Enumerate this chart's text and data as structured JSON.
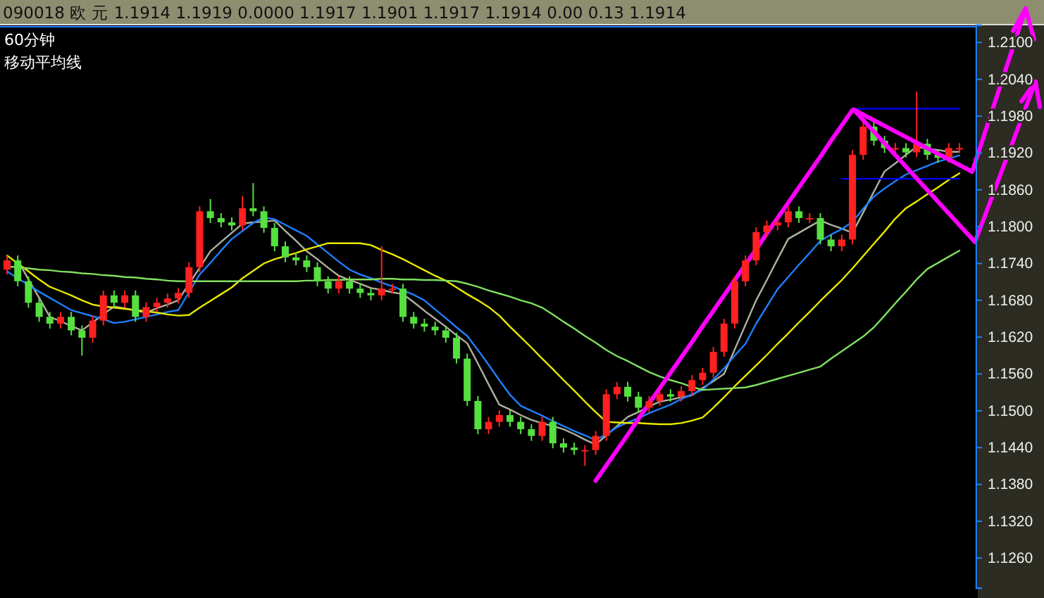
{
  "chart_data": {
    "type": "candlestick",
    "title": "090018 欧 元 1.1914 1.1919 0.0000 1.1917 1.1901 1.1917 1.1914 0.00 0.13 1.1914",
    "subtitle": "60分钟",
    "annotations": [
      "移动平均线"
    ],
    "categories": [
      null,
      null,
      null,
      null,
      null,
      null,
      null,
      null,
      null,
      null,
      null,
      null,
      null,
      null,
      null,
      null,
      null,
      null,
      null,
      null,
      null,
      null,
      null,
      null,
      null,
      null,
      null,
      null,
      null,
      null,
      null,
      null,
      null,
      null,
      null,
      null,
      null,
      null,
      null,
      null,
      null,
      null,
      null,
      null,
      null,
      null,
      null,
      null,
      null,
      null,
      null,
      null,
      null,
      null,
      null,
      null,
      null,
      null,
      null,
      null,
      null,
      null,
      null,
      null,
      null,
      null,
      null,
      null,
      null,
      null,
      null,
      null,
      null,
      null,
      null,
      null,
      null,
      null,
      null,
      null,
      null,
      null,
      null,
      null,
      null,
      null,
      null,
      null,
      null,
      null
    ],
    "ohlc": [
      [
        1.173,
        1.1753,
        1.1722,
        1.1745
      ],
      [
        1.1745,
        1.1753,
        1.1703,
        1.1711
      ],
      [
        1.1711,
        1.1719,
        1.1668,
        1.1676
      ],
      [
        1.1676,
        1.1684,
        1.1645,
        1.1653
      ],
      [
        1.1653,
        1.1661,
        1.1634,
        1.1642
      ],
      [
        1.1642,
        1.1661,
        1.1634,
        1.1653
      ],
      [
        1.1653,
        1.1661,
        1.1623,
        1.1631
      ],
      [
        1.1631,
        1.1639,
        1.159,
        1.1619
      ],
      [
        1.1619,
        1.1655,
        1.1611,
        1.1647
      ],
      [
        1.1647,
        1.1696,
        1.1639,
        1.1688
      ],
      [
        1.1688,
        1.1696,
        1.1668,
        1.1676
      ],
      [
        1.1676,
        1.1696,
        1.1668,
        1.1688
      ],
      [
        1.1688,
        1.1696,
        1.1645,
        1.1653
      ],
      [
        1.1653,
        1.1677,
        1.1645,
        1.1669
      ],
      [
        1.1669,
        1.1684,
        1.1661,
        1.1676
      ],
      [
        1.1676,
        1.1691,
        1.1668,
        1.1683
      ],
      [
        1.1683,
        1.17,
        1.1675,
        1.1692
      ],
      [
        1.1692,
        1.1742,
        1.1684,
        1.1734
      ],
      [
        1.1734,
        1.1833,
        1.1726,
        1.1825
      ],
      [
        1.1825,
        1.1845,
        1.1806,
        1.1814
      ],
      [
        1.1814,
        1.1822,
        1.1799,
        1.1807
      ],
      [
        1.1807,
        1.1815,
        1.1794,
        1.1802
      ],
      [
        1.1802,
        1.185,
        1.1794,
        1.183
      ],
      [
        1.183,
        1.1871,
        1.1817,
        1.1825
      ],
      [
        1.1825,
        1.1833,
        1.179,
        1.1798
      ],
      [
        1.1798,
        1.1806,
        1.176,
        1.1768
      ],
      [
        1.1768,
        1.1776,
        1.1742,
        1.175
      ],
      [
        1.175,
        1.1758,
        1.1737,
        1.1745
      ],
      [
        1.1745,
        1.1753,
        1.1726,
        1.1734
      ],
      [
        1.1734,
        1.1742,
        1.1703,
        1.1711
      ],
      [
        1.1711,
        1.1719,
        1.1691,
        1.1699
      ],
      [
        1.1699,
        1.1719,
        1.1691,
        1.1711
      ],
      [
        1.1711,
        1.1719,
        1.1691,
        1.1699
      ],
      [
        1.1699,
        1.1707,
        1.1684,
        1.1692
      ],
      [
        1.1692,
        1.17,
        1.168,
        1.1688
      ],
      [
        1.1688,
        1.1768,
        1.168,
        1.1699
      ],
      [
        1.1699,
        1.1707,
        1.1691,
        1.1699
      ],
      [
        1.1699,
        1.1707,
        1.1645,
        1.1653
      ],
      [
        1.1653,
        1.1661,
        1.1634,
        1.1642
      ],
      [
        1.1642,
        1.165,
        1.1629,
        1.1637
      ],
      [
        1.1637,
        1.1645,
        1.1623,
        1.1631
      ],
      [
        1.1631,
        1.1639,
        1.1611,
        1.1619
      ],
      [
        1.1619,
        1.1627,
        1.1577,
        1.1585
      ],
      [
        1.1585,
        1.1593,
        1.1508,
        1.1516
      ],
      [
        1.1516,
        1.1524,
        1.1462,
        1.147
      ],
      [
        1.147,
        1.149,
        1.1462,
        1.1482
      ],
      [
        1.1482,
        1.1501,
        1.1474,
        1.1493
      ],
      [
        1.1493,
        1.1501,
        1.1474,
        1.1482
      ],
      [
        1.1482,
        1.149,
        1.1462,
        1.147
      ],
      [
        1.147,
        1.1478,
        1.1451,
        1.1459
      ],
      [
        1.1459,
        1.149,
        1.1451,
        1.1482
      ],
      [
        1.1482,
        1.149,
        1.1439,
        1.1447
      ],
      [
        1.1447,
        1.1455,
        1.1432,
        1.144
      ],
      [
        1.144,
        1.1448,
        1.1428,
        1.1436
      ],
      [
        1.1436,
        1.1444,
        1.141,
        1.1436
      ],
      [
        1.1436,
        1.1467,
        1.1428,
        1.1459
      ],
      [
        1.1459,
        1.1535,
        1.1451,
        1.1527
      ],
      [
        1.1527,
        1.1547,
        1.1519,
        1.1539
      ],
      [
        1.1539,
        1.1547,
        1.1515,
        1.1523
      ],
      [
        1.1523,
        1.1531,
        1.1497,
        1.1505
      ],
      [
        1.1505,
        1.1524,
        1.1497,
        1.1516
      ],
      [
        1.1516,
        1.1535,
        1.1508,
        1.1527
      ],
      [
        1.1527,
        1.1535,
        1.1515,
        1.1523
      ],
      [
        1.1523,
        1.154,
        1.1515,
        1.1532
      ],
      [
        1.1532,
        1.1558,
        1.1524,
        1.155
      ],
      [
        1.155,
        1.157,
        1.1542,
        1.1562
      ],
      [
        1.1562,
        1.1604,
        1.1554,
        1.1596
      ],
      [
        1.1596,
        1.165,
        1.1588,
        1.1642
      ],
      [
        1.1642,
        1.1719,
        1.1634,
        1.1711
      ],
      [
        1.1711,
        1.1753,
        1.1703,
        1.1745
      ],
      [
        1.1745,
        1.1799,
        1.1737,
        1.1791
      ],
      [
        1.1791,
        1.181,
        1.1783,
        1.1802
      ],
      [
        1.1802,
        1.1815,
        1.1794,
        1.1807
      ],
      [
        1.1807,
        1.1833,
        1.1799,
        1.1825
      ],
      [
        1.1825,
        1.1833,
        1.1806,
        1.1814
      ],
      [
        1.1814,
        1.1822,
        1.1806,
        1.1814
      ],
      [
        1.1814,
        1.1822,
        1.1771,
        1.1779
      ],
      [
        1.1779,
        1.1787,
        1.176,
        1.1768
      ],
      [
        1.1768,
        1.1787,
        1.176,
        1.1779
      ],
      [
        1.1779,
        1.1925,
        1.1771,
        1.1917
      ],
      [
        1.1917,
        1.1975,
        1.1909,
        1.1963
      ],
      [
        1.1963,
        1.1971,
        1.1932,
        1.194
      ],
      [
        1.194,
        1.1948,
        1.192,
        1.1928
      ],
      [
        1.1928,
        1.1936,
        1.192,
        1.1928
      ],
      [
        1.1928,
        1.1936,
        1.1913,
        1.1921
      ],
      [
        1.1921,
        1.202,
        1.1913,
        1.1935
      ],
      [
        1.1935,
        1.1943,
        1.1909,
        1.1917
      ],
      [
        1.1917,
        1.1925,
        1.1904,
        1.1912
      ],
      [
        1.1912,
        1.1936,
        1.1904,
        1.1928
      ],
      [
        1.1928,
        1.1936,
        1.192,
        1.1928
      ]
    ],
    "colors": [
      "#ff2020",
      "#55e040",
      "#55e040",
      "#55e040",
      "#55e040",
      "#ff2020",
      "#55e040",
      "#55e040",
      "#ff2020",
      "#ff2020",
      "#55e040",
      "#ff2020",
      "#55e040",
      "#ff2020",
      "#ff2020",
      "#ff2020",
      "#ff2020",
      "#ff2020",
      "#ff2020",
      "#55e040",
      "#55e040",
      "#55e040",
      "#ff2020",
      "#55e040",
      "#55e040",
      "#55e040",
      "#55e040",
      "#55e040",
      "#55e040",
      "#55e040",
      "#55e040",
      "#ff2020",
      "#55e040",
      "#55e040",
      "#55e040",
      "#ff2020",
      "#ff2020",
      "#55e040",
      "#55e040",
      "#55e040",
      "#55e040",
      "#55e040",
      "#55e040",
      "#55e040",
      "#55e040",
      "#ff2020",
      "#ff2020",
      "#55e040",
      "#55e040",
      "#55e040",
      "#ff2020",
      "#55e040",
      "#55e040",
      "#55e040",
      "#ff2020",
      "#ff2020",
      "#ff2020",
      "#ff2020",
      "#55e040",
      "#55e040",
      "#ff2020",
      "#ff2020",
      "#55e040",
      "#ff2020",
      "#ff2020",
      "#ff2020",
      "#ff2020",
      "#ff2020",
      "#ff2020",
      "#ff2020",
      "#ff2020",
      "#ff2020",
      "#ff2020",
      "#ff2020",
      "#55e040",
      "#ff2020",
      "#55e040",
      "#55e040",
      "#ff2020",
      "#ff2020",
      "#ff2020",
      "#55e040",
      "#55e040",
      "#ff2020",
      "#55e040",
      "#ff2020",
      "#55e040",
      "#55e040",
      "#ff2020",
      "#ff2020"
    ],
    "series": [
      {
        "type": "line",
        "color": "#b0b0a0",
        "values": [
          null,
          1.1745,
          1.1714,
          1.1684,
          1.1653,
          1.1646,
          1.1638,
          1.1631,
          1.1644,
          1.1657,
          1.167,
          1.1667,
          1.1663,
          1.166,
          1.1667,
          1.1673,
          1.168,
          1.1707,
          1.1733,
          1.176,
          1.1775,
          1.179,
          1.1805,
          1.1807,
          1.1808,
          1.181,
          1.1793,
          1.1777,
          1.176,
          1.1747,
          1.1733,
          1.172,
          1.1713,
          1.1707,
          1.17,
          1.1697,
          1.1693,
          1.169,
          1.1677,
          1.1663,
          1.165,
          1.1637,
          1.1623,
          1.161,
          1.1577,
          1.1543,
          1.151,
          1.1502,
          1.1493,
          1.1485,
          1.148,
          1.1475,
          1.147,
          1.1462,
          1.1453,
          1.1445,
          1.146,
          1.1475,
          1.149,
          1.1498,
          1.1507,
          1.1515,
          1.1518,
          1.1522,
          1.1525,
          1.1537,
          1.1548,
          1.156,
          1.16,
          1.164,
          1.168,
          1.1713,
          1.1747,
          1.178,
          1.179,
          1.18,
          1.181,
          1.1803,
          1.1797,
          1.179,
          1.1823,
          1.1857,
          1.189,
          1.1903,
          1.1917,
          1.193,
          1.1927,
          1.1925,
          1.1922,
          1.1922
        ]
      },
      {
        "type": "line",
        "color": "#1e7fff",
        "values": [
          1.1727,
          1.1716,
          1.1705,
          1.1694,
          1.1684,
          1.1674,
          1.1664,
          1.1659,
          1.1654,
          1.1649,
          1.1643,
          1.1645,
          1.1649,
          1.1653,
          1.1657,
          1.1661,
          1.1664,
          1.1693,
          1.1722,
          1.1741,
          1.1761,
          1.178,
          1.1793,
          1.1806,
          1.1815,
          1.1812,
          1.1803,
          1.1794,
          1.1785,
          1.1771,
          1.1757,
          1.1743,
          1.173,
          1.1722,
          1.1716,
          1.1709,
          1.1703,
          1.1696,
          1.1689,
          1.168,
          1.1665,
          1.1651,
          1.1636,
          1.1622,
          1.1599,
          1.1575,
          1.155,
          1.1526,
          1.1508,
          1.15,
          1.1492,
          1.1483,
          1.1475,
          1.1467,
          1.146,
          1.1452,
          1.1462,
          1.1473,
          1.1481,
          1.1488,
          1.1496,
          1.1503,
          1.151,
          1.1519,
          1.1527,
          1.1534,
          1.1551,
          1.1569,
          1.159,
          1.1609,
          1.1642,
          1.167,
          1.1698,
          1.1718,
          1.1738,
          1.1757,
          1.1777,
          1.1787,
          1.1796,
          1.1808,
          1.1829,
          1.1849,
          1.1862,
          1.1874,
          1.1885,
          1.1892,
          1.1899,
          1.1906,
          1.1911,
          1.1916
        ]
      },
      {
        "type": "line",
        "color": "#e8e800",
        "values": [
          1.1753,
          1.174,
          1.1727,
          1.1714,
          1.1702,
          1.1695,
          1.1688,
          1.168,
          1.1673,
          1.167,
          1.1668,
          1.1666,
          1.1664,
          1.1662,
          1.166,
          1.1657,
          1.1655,
          1.1656,
          1.1668,
          1.1679,
          1.169,
          1.1701,
          1.1716,
          1.1728,
          1.174,
          1.1747,
          1.1752,
          1.1757,
          1.1763,
          1.1768,
          1.1773,
          1.1773,
          1.1773,
          1.1773,
          1.177,
          1.1762,
          1.1755,
          1.1747,
          1.1738,
          1.1729,
          1.172,
          1.1712,
          1.1701,
          1.169,
          1.168,
          1.1669,
          1.1655,
          1.1637,
          1.162,
          1.1603,
          1.1585,
          1.1568,
          1.155,
          1.1533,
          1.1515,
          1.1498,
          1.1482,
          1.1481,
          1.148,
          1.148,
          1.1479,
          1.1478,
          1.1478,
          1.148,
          1.1484,
          1.1489,
          1.1505,
          1.1522,
          1.154,
          1.1557,
          1.1574,
          1.1591,
          1.1609,
          1.1626,
          1.1644,
          1.1661,
          1.1679,
          1.1696,
          1.1713,
          1.1732,
          1.1752,
          1.1772,
          1.1792,
          1.1813,
          1.183,
          1.1841,
          1.1853,
          1.1864,
          1.1876,
          1.1887
        ]
      },
      {
        "type": "line",
        "color": "#80e060",
        "values": [
          1.1735,
          1.1734,
          1.1732,
          1.173,
          1.1729,
          1.1727,
          1.1726,
          1.1724,
          1.1723,
          1.1721,
          1.172,
          1.1718,
          1.1717,
          1.1715,
          1.1714,
          1.1712,
          1.1711,
          1.1711,
          1.1711,
          1.1711,
          1.1711,
          1.1711,
          1.1711,
          1.1711,
          1.1711,
          1.1711,
          1.1711,
          1.1711,
          1.1712,
          1.1712,
          1.1713,
          1.1713,
          1.1714,
          1.1714,
          1.1714,
          1.1715,
          1.1715,
          1.1714,
          1.1714,
          1.1713,
          1.1713,
          1.1712,
          1.1711,
          1.1707,
          1.1702,
          1.1696,
          1.1691,
          1.1686,
          1.168,
          1.1675,
          1.1668,
          1.1657,
          1.1645,
          1.1634,
          1.1622,
          1.1611,
          1.1599,
          1.1589,
          1.1581,
          1.1572,
          1.1563,
          1.1556,
          1.155,
          1.1545,
          1.1539,
          1.1534,
          1.1535,
          1.1536,
          1.1537,
          1.1538,
          1.1542,
          1.1547,
          1.1552,
          1.1557,
          1.1562,
          1.1567,
          1.1572,
          1.1585,
          1.1597,
          1.1609,
          1.1621,
          1.1636,
          1.1655,
          1.1675,
          1.1694,
          1.1714,
          1.1731,
          1.1741,
          1.1751,
          1.1761
        ]
      },
      {
        "type": "line",
        "color": "#ff00ff",
        "values": [
          null,
          null,
          null,
          null,
          null,
          null,
          null,
          null,
          null,
          null,
          null,
          null,
          null,
          null,
          null,
          null,
          null,
          null,
          null,
          null,
          null,
          null,
          null,
          null,
          null,
          null,
          null,
          null,
          null,
          null,
          null,
          null,
          null,
          null,
          null,
          null,
          null,
          null,
          null,
          null,
          null,
          null,
          null,
          null,
          null,
          null,
          null,
          null,
          null,
          null,
          null,
          null,
          null,
          null,
          null,
          1.1386,
          1.1411,
          1.1436,
          1.1461,
          1.1487,
          1.1512,
          1.1537,
          1.1562,
          1.1587,
          1.1612,
          1.1638,
          1.1663,
          1.1688,
          1.1713,
          1.1738,
          1.1763,
          1.1789,
          1.1814,
          1.1839,
          1.1864,
          1.1889,
          1.1914,
          1.194,
          1.1965,
          1.199,
          null,
          null,
          null,
          null,
          null,
          null,
          null,
          null,
          null,
          null
        ]
      },
      {
        "type": "line",
        "color": "#0000ff",
        "values": [
          null,
          null,
          null,
          null,
          null,
          null,
          null,
          null,
          null,
          null,
          null,
          null,
          null,
          null,
          null,
          null,
          null,
          null,
          null,
          null,
          null,
          null,
          null,
          null,
          null,
          null,
          null,
          null,
          null,
          null,
          null,
          null,
          null,
          null,
          null,
          null,
          null,
          null,
          null,
          null,
          null,
          null,
          null,
          null,
          null,
          null,
          null,
          null,
          null,
          null,
          null,
          null,
          null,
          null,
          null,
          null,
          null,
          null,
          null,
          null,
          null,
          null,
          null,
          null,
          null,
          null,
          null,
          null,
          null,
          null,
          null,
          null,
          null,
          null,
          null,
          null,
          null,
          null,
          null,
          1.1992,
          1.1992,
          1.1992,
          1.1992,
          1.1992,
          1.1992,
          1.1992,
          1.1992,
          1.1992,
          1.1992,
          1.1992
        ]
      },
      {
        "type": "line",
        "color": "#0000ff",
        "values": [
          null,
          null,
          null,
          null,
          null,
          null,
          null,
          null,
          null,
          null,
          null,
          null,
          null,
          null,
          null,
          null,
          null,
          null,
          null,
          null,
          null,
          null,
          null,
          null,
          null,
          null,
          null,
          null,
          null,
          null,
          null,
          null,
          null,
          null,
          null,
          null,
          null,
          null,
          null,
          null,
          null,
          null,
          null,
          null,
          null,
          null,
          null,
          null,
          null,
          null,
          null,
          null,
          null,
          null,
          null,
          null,
          null,
          null,
          null,
          null,
          null,
          null,
          null,
          null,
          null,
          null,
          null,
          null,
          null,
          null,
          null,
          null,
          null,
          null,
          null,
          null,
          null,
          null,
          1.1878,
          1.1878,
          1.1878,
          1.1878,
          1.1878,
          1.1878,
          1.1878,
          1.1878,
          1.1878,
          1.1878,
          1.1878,
          1.1878
        ]
      }
    ],
    "ylim": [
      1.1211,
      1.2128
    ],
    "yticks": [
      {
        "value": 1.21,
        "label": "1.2100"
      },
      {
        "value": 1.204,
        "label": "1.2040"
      },
      {
        "value": 1.198,
        "label": "1.1980"
      },
      {
        "value": 1.192,
        "label": "1.1920"
      },
      {
        "value": 1.186,
        "label": "1.1860"
      },
      {
        "value": 1.18,
        "label": "1.1800"
      },
      {
        "value": 1.174,
        "label": "1.1740"
      },
      {
        "value": 1.168,
        "label": "1.1680"
      },
      {
        "value": 1.162,
        "label": "1.1620"
      },
      {
        "value": 1.156,
        "label": "1.1560"
      },
      {
        "value": 1.15,
        "label": "1.1500"
      },
      {
        "value": 1.144,
        "label": "1.1440"
      },
      {
        "value": 1.138,
        "label": "1.1380"
      },
      {
        "value": 1.132,
        "label": "1.1320"
      },
      {
        "value": 1.126,
        "label": "1.1260"
      }
    ],
    "tick_labels": "y"
  }
}
